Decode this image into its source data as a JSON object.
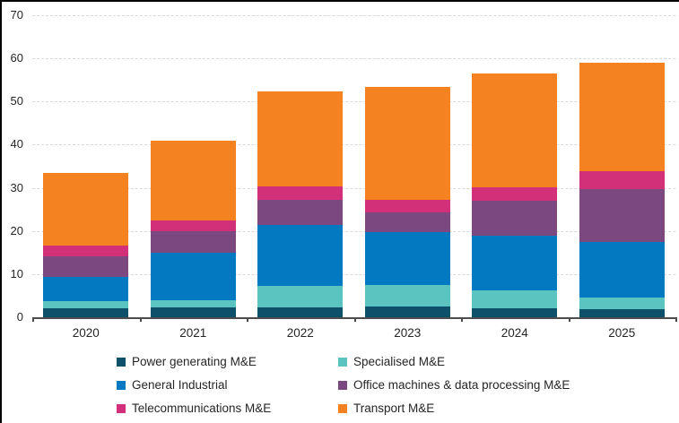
{
  "chart_data": {
    "type": "bar",
    "stacked": true,
    "title": "",
    "xlabel": "",
    "ylabel": "",
    "categories": [
      "2020",
      "2021",
      "2022",
      "2023",
      "2024",
      "2025"
    ],
    "series": [
      {
        "name": "Power generating M&E",
        "color": "#0d506a",
        "values": [
          2.0,
          2.3,
          2.2,
          2.4,
          2.1,
          1.8
        ]
      },
      {
        "name": "Specialised M&E",
        "color": "#5cc4c0",
        "values": [
          1.7,
          1.7,
          5.1,
          5.0,
          4.1,
          2.8
        ]
      },
      {
        "name": "General Industrial",
        "color": "#0379c2",
        "values": [
          5.6,
          10.9,
          14.0,
          12.4,
          12.7,
          12.8
        ]
      },
      {
        "name": "Office machines & data processing M&E",
        "color": "#7b4980",
        "values": [
          4.9,
          5.0,
          5.9,
          4.5,
          8.1,
          12.4
        ]
      },
      {
        "name": "Telecommunications M&E",
        "color": "#d23078",
        "values": [
          2.4,
          2.5,
          3.2,
          2.9,
          3.2,
          4.1
        ]
      },
      {
        "name": "Transport M&E",
        "color": "#f58220",
        "values": [
          16.9,
          18.5,
          22.0,
          26.1,
          26.4,
          25.2
        ]
      }
    ],
    "totals": [
      33.5,
      40.9,
      52.4,
      53.3,
      56.6,
      59.1
    ],
    "ylim": [
      0,
      70
    ],
    "yticks": [
      0,
      10,
      20,
      30,
      40,
      50,
      60,
      70
    ],
    "y_tick_labels": [
      "0",
      "10",
      "20",
      "30",
      "40",
      "50",
      "60",
      "70"
    ],
    "grid": "horizontal-dashed",
    "gridline_color": "#d9d9d9",
    "axis_color": "#4d4d4d",
    "legend_position": "bottom-two-columns"
  }
}
